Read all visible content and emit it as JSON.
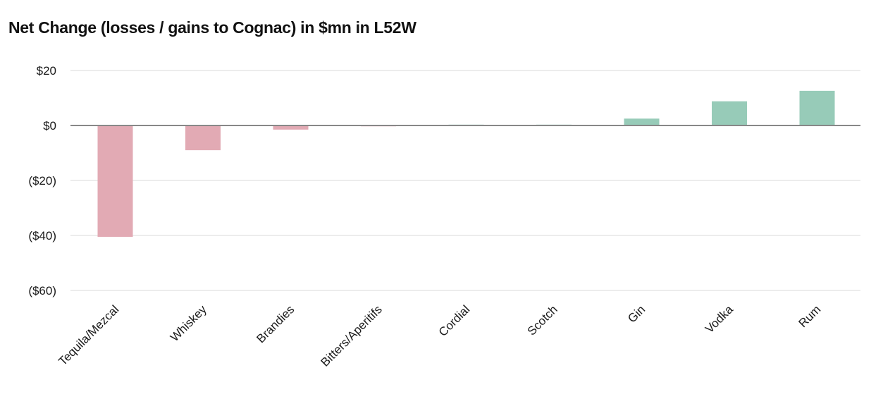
{
  "chart_data": {
    "type": "bar",
    "title": "Net Change (losses / gains to Cognac) in $mn in L52W",
    "xlabel": "",
    "ylabel": "",
    "categories": [
      "Tequila/Mezcal",
      "Whiskey",
      "Brandies",
      "Bitters/Aperitifs",
      "Cordial",
      "Scotch",
      "Gin",
      "Vodka",
      "Rum"
    ],
    "values": [
      -40.5,
      -9,
      -1.5,
      -0.3,
      0.3,
      0.3,
      2.5,
      8.8,
      12.6
    ],
    "ylim": [
      -60,
      20
    ],
    "yticks": [
      20,
      0,
      -20,
      -40,
      -60
    ],
    "ytick_labels": [
      "$20",
      "$0",
      "($20)",
      "($40)",
      "($60)"
    ],
    "grid": true,
    "legend": "none",
    "colors": {
      "negative": "#e2aab4",
      "positive": "#97cbb8",
      "gridline": "#d9d9d9",
      "zero_line": "#888888"
    }
  }
}
